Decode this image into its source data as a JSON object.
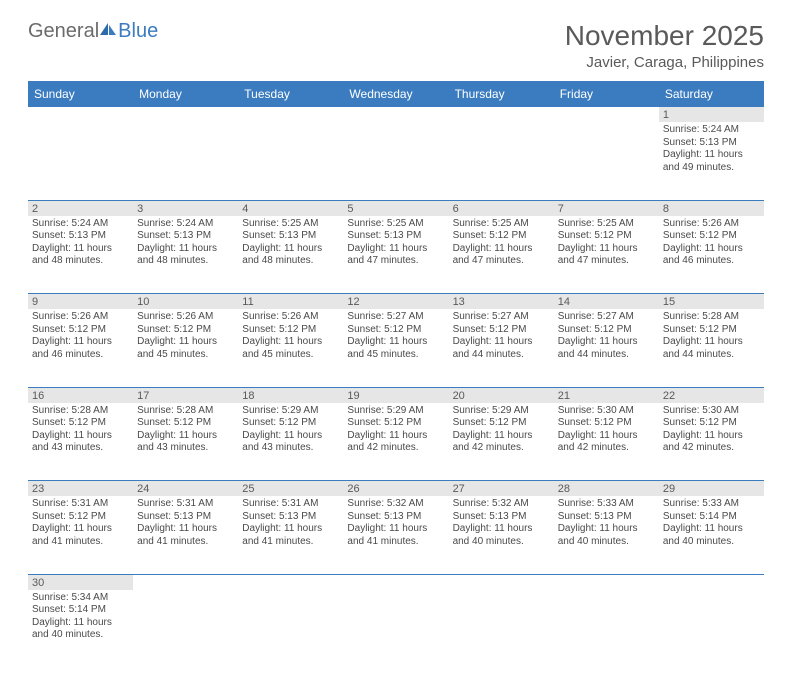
{
  "logo": {
    "text_a": "General",
    "text_b": "Blue"
  },
  "title": "November 2025",
  "location": "Javier, Caraga, Philippines",
  "colors": {
    "header_bg": "#3b7bbf",
    "header_text": "#ffffff",
    "daynum_bg": "#e6e6e6",
    "row_divider": "#3b7bbf",
    "text": "#4a4a4a",
    "logo_gray": "#6b6b6b",
    "logo_blue": "#3b7bbf",
    "page_bg": "#ffffff"
  },
  "typography": {
    "title_fontsize": 28,
    "location_fontsize": 15,
    "dayheader_fontsize": 12,
    "daynum_fontsize": 11,
    "cell_fontsize": 10
  },
  "day_headers": [
    "Sunday",
    "Monday",
    "Tuesday",
    "Wednesday",
    "Thursday",
    "Friday",
    "Saturday"
  ],
  "weeks": [
    [
      null,
      null,
      null,
      null,
      null,
      null,
      {
        "n": "1",
        "sr": "Sunrise: 5:24 AM",
        "ss": "Sunset: 5:13 PM",
        "d1": "Daylight: 11 hours",
        "d2": "and 49 minutes."
      }
    ],
    [
      {
        "n": "2",
        "sr": "Sunrise: 5:24 AM",
        "ss": "Sunset: 5:13 PM",
        "d1": "Daylight: 11 hours",
        "d2": "and 48 minutes."
      },
      {
        "n": "3",
        "sr": "Sunrise: 5:24 AM",
        "ss": "Sunset: 5:13 PM",
        "d1": "Daylight: 11 hours",
        "d2": "and 48 minutes."
      },
      {
        "n": "4",
        "sr": "Sunrise: 5:25 AM",
        "ss": "Sunset: 5:13 PM",
        "d1": "Daylight: 11 hours",
        "d2": "and 48 minutes."
      },
      {
        "n": "5",
        "sr": "Sunrise: 5:25 AM",
        "ss": "Sunset: 5:13 PM",
        "d1": "Daylight: 11 hours",
        "d2": "and 47 minutes."
      },
      {
        "n": "6",
        "sr": "Sunrise: 5:25 AM",
        "ss": "Sunset: 5:12 PM",
        "d1": "Daylight: 11 hours",
        "d2": "and 47 minutes."
      },
      {
        "n": "7",
        "sr": "Sunrise: 5:25 AM",
        "ss": "Sunset: 5:12 PM",
        "d1": "Daylight: 11 hours",
        "d2": "and 47 minutes."
      },
      {
        "n": "8",
        "sr": "Sunrise: 5:26 AM",
        "ss": "Sunset: 5:12 PM",
        "d1": "Daylight: 11 hours",
        "d2": "and 46 minutes."
      }
    ],
    [
      {
        "n": "9",
        "sr": "Sunrise: 5:26 AM",
        "ss": "Sunset: 5:12 PM",
        "d1": "Daylight: 11 hours",
        "d2": "and 46 minutes."
      },
      {
        "n": "10",
        "sr": "Sunrise: 5:26 AM",
        "ss": "Sunset: 5:12 PM",
        "d1": "Daylight: 11 hours",
        "d2": "and 45 minutes."
      },
      {
        "n": "11",
        "sr": "Sunrise: 5:26 AM",
        "ss": "Sunset: 5:12 PM",
        "d1": "Daylight: 11 hours",
        "d2": "and 45 minutes."
      },
      {
        "n": "12",
        "sr": "Sunrise: 5:27 AM",
        "ss": "Sunset: 5:12 PM",
        "d1": "Daylight: 11 hours",
        "d2": "and 45 minutes."
      },
      {
        "n": "13",
        "sr": "Sunrise: 5:27 AM",
        "ss": "Sunset: 5:12 PM",
        "d1": "Daylight: 11 hours",
        "d2": "and 44 minutes."
      },
      {
        "n": "14",
        "sr": "Sunrise: 5:27 AM",
        "ss": "Sunset: 5:12 PM",
        "d1": "Daylight: 11 hours",
        "d2": "and 44 minutes."
      },
      {
        "n": "15",
        "sr": "Sunrise: 5:28 AM",
        "ss": "Sunset: 5:12 PM",
        "d1": "Daylight: 11 hours",
        "d2": "and 44 minutes."
      }
    ],
    [
      {
        "n": "16",
        "sr": "Sunrise: 5:28 AM",
        "ss": "Sunset: 5:12 PM",
        "d1": "Daylight: 11 hours",
        "d2": "and 43 minutes."
      },
      {
        "n": "17",
        "sr": "Sunrise: 5:28 AM",
        "ss": "Sunset: 5:12 PM",
        "d1": "Daylight: 11 hours",
        "d2": "and 43 minutes."
      },
      {
        "n": "18",
        "sr": "Sunrise: 5:29 AM",
        "ss": "Sunset: 5:12 PM",
        "d1": "Daylight: 11 hours",
        "d2": "and 43 minutes."
      },
      {
        "n": "19",
        "sr": "Sunrise: 5:29 AM",
        "ss": "Sunset: 5:12 PM",
        "d1": "Daylight: 11 hours",
        "d2": "and 42 minutes."
      },
      {
        "n": "20",
        "sr": "Sunrise: 5:29 AM",
        "ss": "Sunset: 5:12 PM",
        "d1": "Daylight: 11 hours",
        "d2": "and 42 minutes."
      },
      {
        "n": "21",
        "sr": "Sunrise: 5:30 AM",
        "ss": "Sunset: 5:12 PM",
        "d1": "Daylight: 11 hours",
        "d2": "and 42 minutes."
      },
      {
        "n": "22",
        "sr": "Sunrise: 5:30 AM",
        "ss": "Sunset: 5:12 PM",
        "d1": "Daylight: 11 hours",
        "d2": "and 42 minutes."
      }
    ],
    [
      {
        "n": "23",
        "sr": "Sunrise: 5:31 AM",
        "ss": "Sunset: 5:12 PM",
        "d1": "Daylight: 11 hours",
        "d2": "and 41 minutes."
      },
      {
        "n": "24",
        "sr": "Sunrise: 5:31 AM",
        "ss": "Sunset: 5:13 PM",
        "d1": "Daylight: 11 hours",
        "d2": "and 41 minutes."
      },
      {
        "n": "25",
        "sr": "Sunrise: 5:31 AM",
        "ss": "Sunset: 5:13 PM",
        "d1": "Daylight: 11 hours",
        "d2": "and 41 minutes."
      },
      {
        "n": "26",
        "sr": "Sunrise: 5:32 AM",
        "ss": "Sunset: 5:13 PM",
        "d1": "Daylight: 11 hours",
        "d2": "and 41 minutes."
      },
      {
        "n": "27",
        "sr": "Sunrise: 5:32 AM",
        "ss": "Sunset: 5:13 PM",
        "d1": "Daylight: 11 hours",
        "d2": "and 40 minutes."
      },
      {
        "n": "28",
        "sr": "Sunrise: 5:33 AM",
        "ss": "Sunset: 5:13 PM",
        "d1": "Daylight: 11 hours",
        "d2": "and 40 minutes."
      },
      {
        "n": "29",
        "sr": "Sunrise: 5:33 AM",
        "ss": "Sunset: 5:14 PM",
        "d1": "Daylight: 11 hours",
        "d2": "and 40 minutes."
      }
    ],
    [
      {
        "n": "30",
        "sr": "Sunrise: 5:34 AM",
        "ss": "Sunset: 5:14 PM",
        "d1": "Daylight: 11 hours",
        "d2": "and 40 minutes."
      },
      null,
      null,
      null,
      null,
      null,
      null
    ]
  ]
}
